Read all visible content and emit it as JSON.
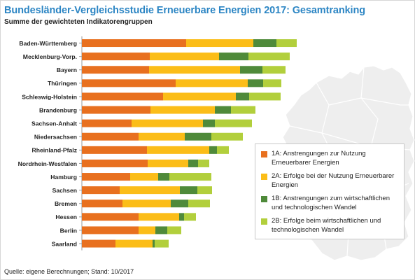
{
  "title": "Bundesländer-Vergleichsstudie Erneuerbare Energien 2017: Gesamtranking",
  "subtitle": "Summe der gewichteten Indikatorengruppen",
  "source": "Quelle: eigene Berechnungen; Stand: 10/2017",
  "colors": {
    "1A": "#e8701f",
    "2A": "#fbbd18",
    "1B": "#4f8a3a",
    "2B": "#b2cf3c",
    "map": "#eeeeee",
    "map_stroke": "#ffffff"
  },
  "chart_data": {
    "type": "bar",
    "orientation": "horizontal",
    "stacked": true,
    "title": "Bundesländer-Vergleichsstudie Erneuerbare Energien 2017: Gesamtranking",
    "subtitle": "Summe der gewichteten Indikatorengruppen",
    "legend": "bottom-right",
    "grid": false,
    "categories": [
      "Baden-Württemberg",
      "Mecklenburg-Vorp.",
      "Bayern",
      "Thüringen",
      "Schleswig-Holstein",
      "Brandenburg",
      "Sachsen-Anhalt",
      "Niedersachsen",
      "Rheinland-Pfalz",
      "Nordrhein-Westfalen",
      "Hamburg",
      "Sachsen",
      "Bremen",
      "Hessen",
      "Berlin",
      "Saarland"
    ],
    "series": [
      {
        "key": "1A",
        "name": "1A: Anstrengungen zur Nutzung Erneuerbarer Energien",
        "values": [
          149,
          97,
          96,
          134,
          116,
          98,
          71,
          81,
          93,
          94,
          69,
          54,
          58,
          81,
          81,
          48
        ]
      },
      {
        "key": "2A",
        "name": "2A: Erfolge bei der Nutzung Erneuerbarer Energien",
        "values": [
          96,
          99,
          130,
          103,
          104,
          92,
          102,
          66,
          89,
          58,
          40,
          86,
          69,
          58,
          24,
          53
        ]
      },
      {
        "key": "1B",
        "name": "1B: Anstrengungen zum wirtschaftlichen und technologischen Wandel",
        "values": [
          33,
          42,
          32,
          22,
          19,
          23,
          17,
          38,
          11,
          14,
          16,
          25,
          25,
          7,
          17,
          3
        ]
      },
      {
        "key": "2B",
        "name": "2B: Erfolge beim wirtschaftlichen und technologischen Wandel",
        "values": [
          29,
          59,
          33,
          26,
          45,
          35,
          53,
          45,
          17,
          16,
          60,
          21,
          31,
          17,
          20,
          20
        ]
      }
    ],
    "xlabel": "",
    "ylabel": ""
  }
}
